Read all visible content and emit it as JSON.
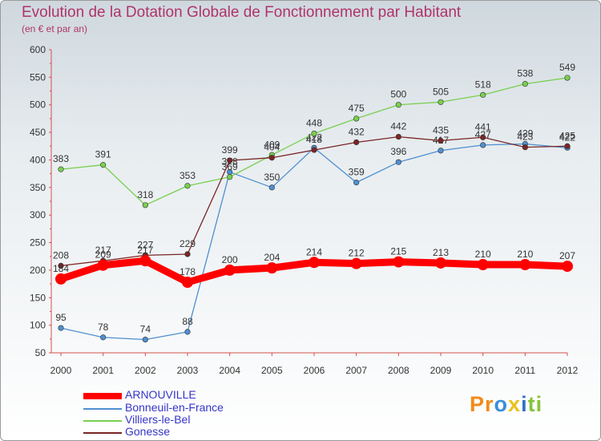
{
  "chart_data": {
    "type": "line",
    "title": "Evolution de la Dotation Globale de Fonctionnement par Habitant",
    "subtitle": "(en € et par an)",
    "xlabel": "",
    "ylabel": "",
    "categories": [
      "2000",
      "2001",
      "2002",
      "2003",
      "2004",
      "2005",
      "2006",
      "2007",
      "2008",
      "2009",
      "2010",
      "2011",
      "2012"
    ],
    "ylim": [
      50,
      600
    ],
    "yticks": [
      50,
      100,
      150,
      200,
      250,
      300,
      350,
      400,
      450,
      500,
      550,
      600
    ],
    "grid": false,
    "legend_position": "bottom-left",
    "series": [
      {
        "name": "ARNOUVILLE",
        "color": "#ff0000",
        "values": [
          184,
          209,
          217,
          178,
          200,
          204,
          214,
          212,
          215,
          213,
          210,
          210,
          207
        ]
      },
      {
        "name": "Bonneuil-en-France",
        "color": "#4f8fd0",
        "values": [
          95,
          78,
          74,
          88,
          378,
          350,
          422,
          359,
          396,
          417,
          427,
          429,
          422
        ]
      },
      {
        "name": "Villiers-le-Bel",
        "color": "#79cf4f",
        "values": [
          383,
          391,
          318,
          353,
          369,
          409,
          448,
          475,
          500,
          505,
          518,
          538,
          549
        ]
      },
      {
        "name": "Gonesse",
        "color": "#7a2626",
        "values": [
          208,
          217,
          227,
          229,
          399,
          404,
          418,
          432,
          442,
          435,
          441,
          423,
          425
        ]
      }
    ]
  },
  "brand": {
    "p1": "Pr",
    "p2": "o",
    "p3": "x",
    "p4": "i",
    "p5": "ti"
  }
}
